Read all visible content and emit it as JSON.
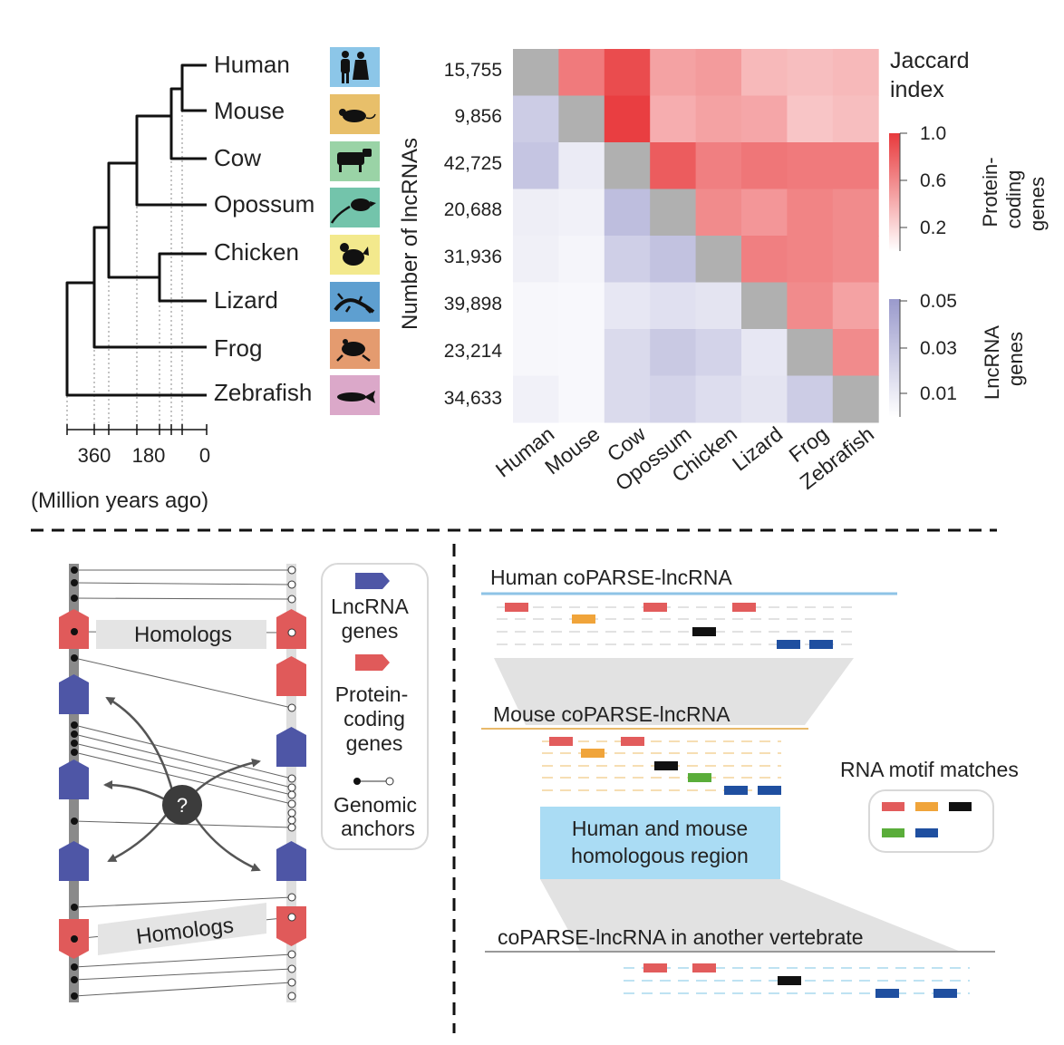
{
  "tree": {
    "species": [
      "Human",
      "Mouse",
      "Cow",
      "Opossum",
      "Chicken",
      "Lizard",
      "Frog",
      "Zebrafish"
    ],
    "axis_ticks": [
      "360",
      "180",
      "0"
    ],
    "axis_label": "(Million years ago)"
  },
  "heatmap": {
    "ylabel": "Number of lncRNAs",
    "counts": [
      "15,755",
      "9,856",
      "42,725",
      "20,688",
      "31,936",
      "39,898",
      "23,214",
      "34,633"
    ],
    "columns": [
      "Human",
      "Mouse",
      "Cow",
      "Opossum",
      "Chicken",
      "Lizard",
      "Frog",
      "Zebrafish"
    ],
    "upper_triangle": "Protein-coding genes",
    "lower_triangle": "LncRNA genes",
    "values": [
      [
        null,
        0.62,
        0.82,
        0.45,
        0.48,
        0.35,
        0.33,
        0.35
      ],
      [
        0.03,
        null,
        0.88,
        0.4,
        0.45,
        0.43,
        0.3,
        0.33
      ],
      [
        0.034,
        0.012,
        null,
        0.75,
        0.6,
        0.64,
        0.62,
        0.62
      ],
      [
        0.01,
        0.008,
        0.038,
        null,
        0.55,
        0.5,
        0.58,
        0.55
      ],
      [
        0.009,
        0.006,
        0.028,
        0.036,
        null,
        0.6,
        0.58,
        0.55
      ],
      [
        0.005,
        0.004,
        0.014,
        0.018,
        0.016,
        null,
        0.55,
        0.45
      ],
      [
        0.005,
        0.004,
        0.022,
        0.032,
        0.026,
        0.014,
        null,
        0.55
      ],
      [
        0.008,
        0.004,
        0.022,
        0.026,
        0.02,
        0.016,
        0.03,
        null
      ]
    ],
    "colors": {
      "high": "#e8393c",
      "low": "#aaaad4",
      "diagonal": "#b0b0b0"
    }
  },
  "legend_heat": {
    "title_lines": [
      "Jaccard",
      "index"
    ],
    "pc_ticks": [
      "1.0",
      "0.6",
      "0.2"
    ],
    "pc_label_lines": [
      "Protein-",
      "coding",
      "genes"
    ],
    "lnc_ticks": [
      "0.05",
      "0.03",
      "0.01"
    ],
    "lnc_label_lines": [
      "LncRNA",
      "genes"
    ]
  },
  "anchors": {
    "homologs_label": "Homologs",
    "question": "?",
    "legend": {
      "lnc_lines": [
        "LncRNA",
        "genes"
      ],
      "pc_lines": [
        "Protein-",
        "coding",
        "genes"
      ],
      "anchor_lines": [
        "Genomic",
        "anchors"
      ]
    },
    "colors": {
      "lncrna": "#4e56a6",
      "protein": "#e05a5a"
    }
  },
  "coparse": {
    "human_title": "Human coPARSE-lncRNA",
    "mouse_title": "Mouse coPARSE-lncRNA",
    "region_lines": [
      "Human and mouse",
      "homologous region"
    ],
    "other_title": "coPARSE-lncRNA in another vertebrate",
    "motif_legend": "RNA motif matches",
    "motif_colors": [
      "#e25c5c",
      "#f0a43a",
      "#111111",
      "#5aad3a",
      "#1f4fa0"
    ]
  }
}
